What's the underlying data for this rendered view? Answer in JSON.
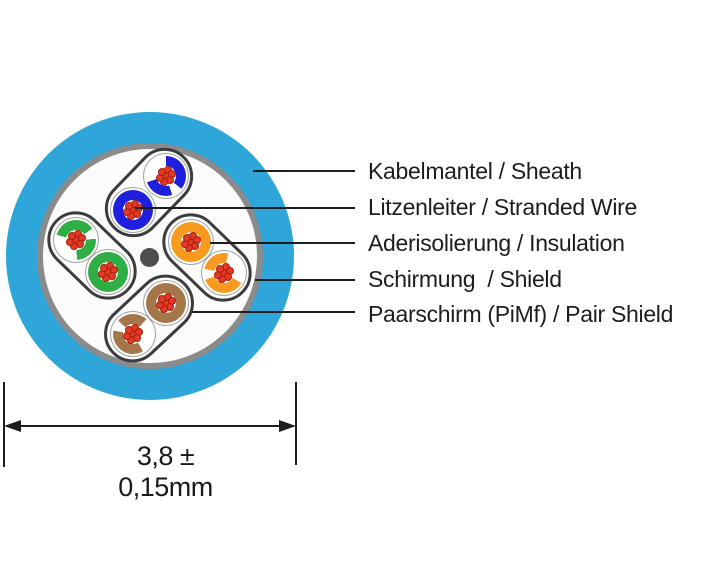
{
  "diagram": {
    "title": "cable cross-section",
    "labels": [
      {
        "text": "Kabelmantel / Sheath"
      },
      {
        "text": "Litzenleiter / Stranded Wire"
      },
      {
        "text": "Aderisolierung / Insulation"
      },
      {
        "text": "Schirmung  / Shield"
      },
      {
        "text": "Paarschirm (PiMf) / Pair Shield"
      }
    ],
    "dimension": {
      "text": "3,8 ± 0,15mm"
    },
    "colors": {
      "sheath": "#2FA6D9",
      "shield": "#8B8B8B",
      "interior": "#FCFCFC",
      "pair_shield_outline": "#3C3C3C",
      "filler_center": "#4E4E4E",
      "strand": "#E23A24",
      "strand_edge": "#A81E0E",
      "pair_blue": "#1F1FDE",
      "pair_green": "#30AE46",
      "pair_orange": "#F79A1E",
      "pair_brown": "#A6764B"
    },
    "pairs": [
      {
        "name": "blue"
      },
      {
        "name": "green"
      },
      {
        "name": "orange"
      },
      {
        "name": "brown"
      }
    ]
  }
}
